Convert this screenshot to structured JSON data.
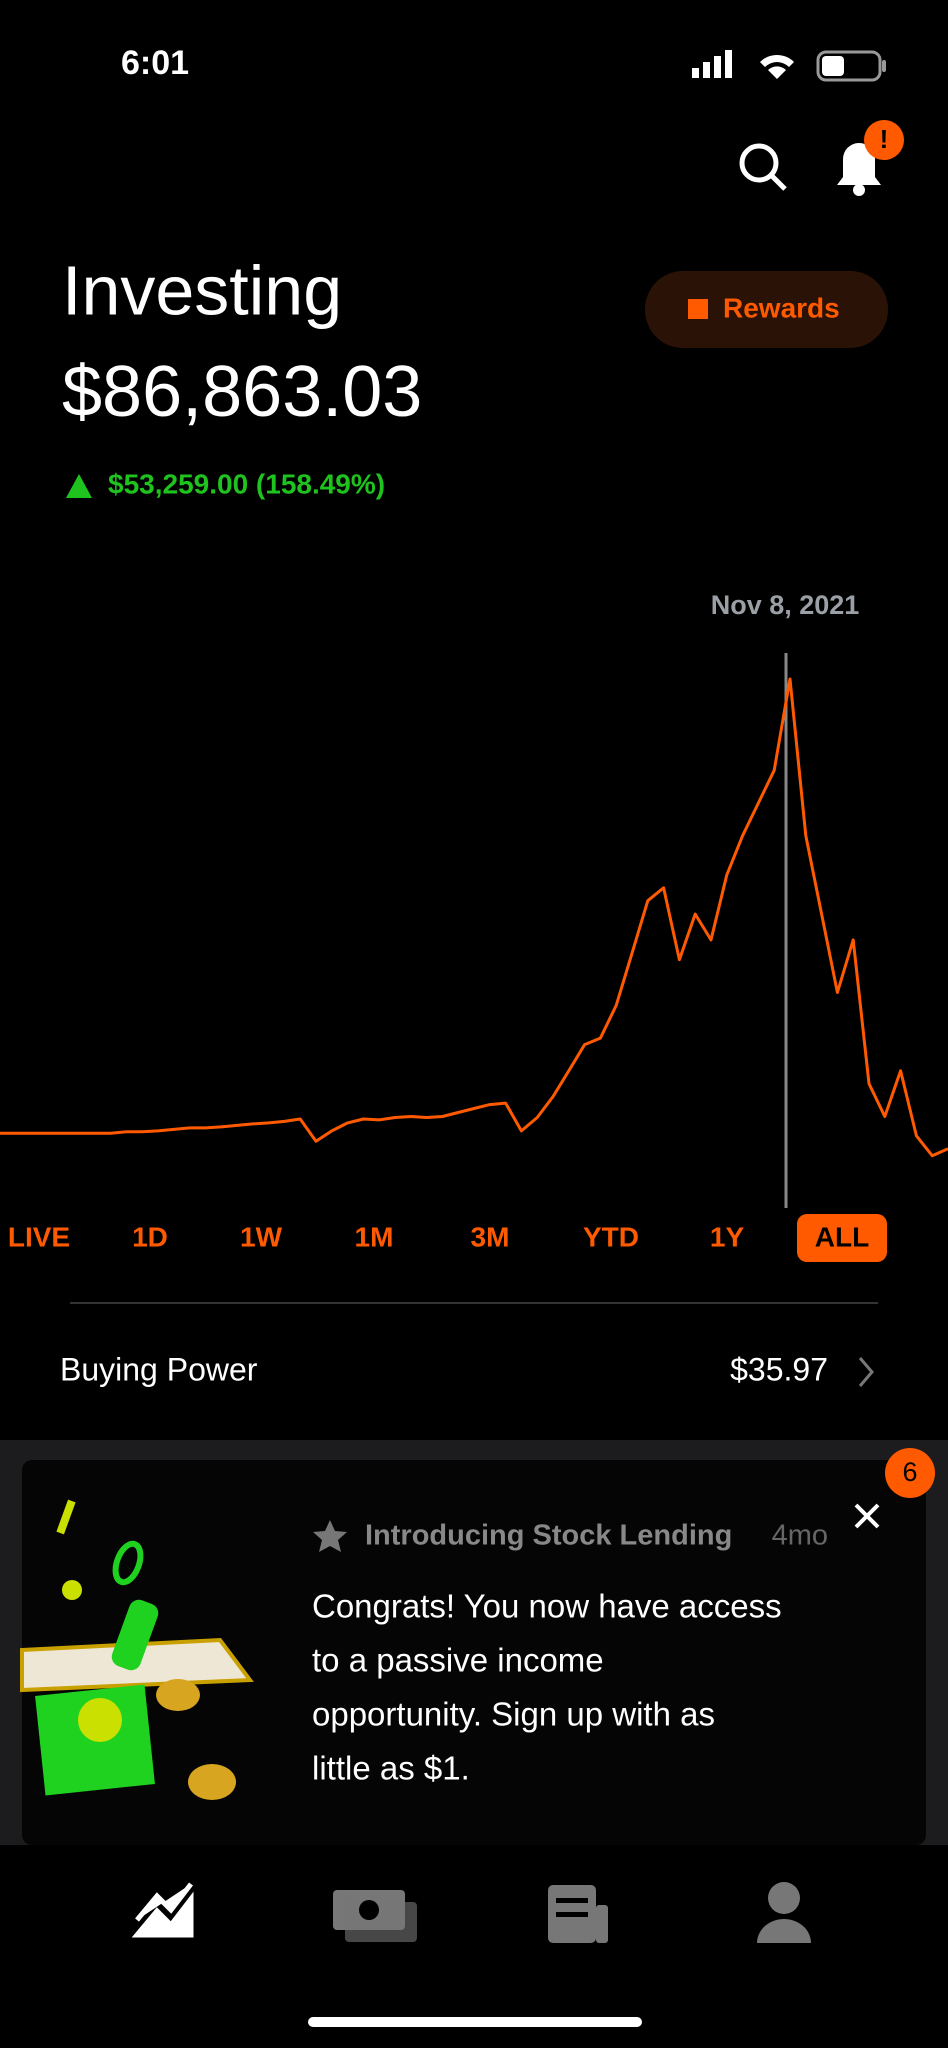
{
  "status_bar": {
    "time": "6:01"
  },
  "header": {
    "title": "Investing",
    "balance": "$86,863.03",
    "change": "$53,259.00 (158.49%)",
    "rewards": "Rewards",
    "alert_badge": "!"
  },
  "chart_data": {
    "type": "line",
    "annotation": "Nov 8, 2021",
    "color": "#ff5a00",
    "ylim": [
      0,
      100
    ],
    "values": [
      8.4,
      8.4,
      8.4,
      8.4,
      8.4,
      8.4,
      8.4,
      8.4,
      8.7,
      8.7,
      8.9,
      9.2,
      9.5,
      9.5,
      9.7,
      10,
      10.3,
      10.5,
      10.8,
      11.3,
      6.8,
      8.9,
      10.5,
      11.3,
      11.1,
      11.6,
      11.8,
      11.6,
      11.8,
      12.6,
      13.4,
      14.2,
      14.5,
      8.9,
      11.6,
      15.8,
      21,
      26.3,
      27.6,
      34.2,
      44.7,
      55.3,
      57.9,
      43.4,
      52.6,
      47.4,
      60.5,
      68.4,
      75,
      81.6,
      100,
      68.4,
      52.6,
      36.8,
      47.4,
      18.4,
      11.8,
      21,
      7.9,
      3.9,
      5.3
    ]
  },
  "range_tabs": [
    "LIVE",
    "1D",
    "1W",
    "1M",
    "3M",
    "YTD",
    "1Y",
    "ALL"
  ],
  "buying_power": {
    "label": "Buying Power",
    "value": "$35.97"
  },
  "card": {
    "badge": "6",
    "title": "Introducing Stock Lending",
    "age": "4mo",
    "body": [
      "Congrats! You now have access",
      "to a passive income",
      "opportunity. Sign up with as",
      "little as $1."
    ]
  }
}
